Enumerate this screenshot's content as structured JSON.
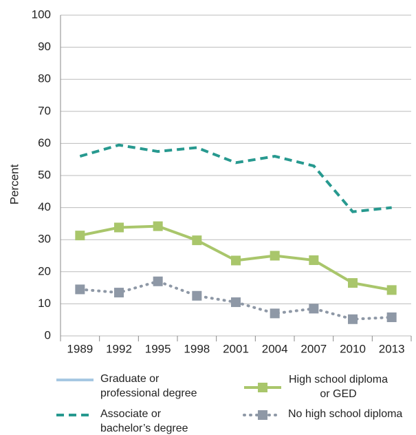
{
  "chart_data": {
    "type": "line",
    "y_label": "Percent",
    "categories": [
      "1989",
      "1992",
      "1995",
      "1998",
      "2001",
      "2004",
      "2007",
      "2010",
      "2013"
    ],
    "series": [
      {
        "name": "Graduate or professional degree",
        "color": "#a6c8e2",
        "style": "solid",
        "marker": "none",
        "values": [
          null,
          null,
          null,
          null,
          null,
          null,
          null,
          null,
          null
        ]
      },
      {
        "name": "High school diploma or GED",
        "color": "#a9c66b",
        "style": "solid",
        "marker": "square",
        "values": [
          31.3,
          33.8,
          34.2,
          29.8,
          23.5,
          25,
          23.6,
          16.5,
          14.3
        ]
      },
      {
        "name": "Associate or bachelor’s degree",
        "color": "#27998f",
        "style": "dashed",
        "marker": "none",
        "values": [
          56,
          59.5,
          57.5,
          58.7,
          54,
          56,
          53,
          38.7,
          40
        ]
      },
      {
        "name": "No high school diploma",
        "color": "#8e98a6",
        "style": "dotted",
        "marker": "square",
        "values": [
          14.5,
          13.5,
          17,
          12.5,
          10.5,
          7,
          8.5,
          5.2,
          5.8
        ]
      }
    ],
    "ylim": [
      0,
      100
    ],
    "yticks": [
      0,
      10,
      20,
      30,
      40,
      50,
      60,
      70,
      80,
      90,
      100
    ],
    "grid": true
  }
}
